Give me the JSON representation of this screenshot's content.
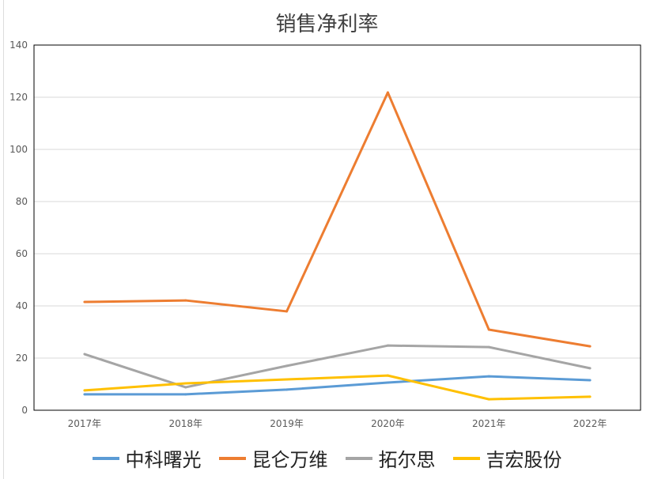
{
  "chart_data": {
    "type": "line",
    "title": "销售净利率",
    "categories": [
      "2017年",
      "2018年",
      "2019年",
      "2020年",
      "2021年",
      "2022年"
    ],
    "ylim": [
      0,
      140
    ],
    "yticks": [
      0,
      20,
      40,
      60,
      80,
      100,
      120,
      140
    ],
    "grid": true,
    "legend": "bottom",
    "series": [
      {
        "name": "中科曙光",
        "color": "#5b9bd5",
        "values": [
          6.1,
          6.1,
          7.9,
          10.6,
          13.0,
          11.5
        ]
      },
      {
        "name": "昆仑万维",
        "color": "#ed7d31",
        "values": [
          41.5,
          42.1,
          37.9,
          121.8,
          30.9,
          24.5
        ]
      },
      {
        "name": "拓尔思",
        "color": "#a5a5a5",
        "values": [
          21.5,
          8.8,
          17.0,
          24.8,
          24.2,
          16.1
        ]
      },
      {
        "name": "吉宏股份",
        "color": "#ffc000",
        "values": [
          7.6,
          10.3,
          11.8,
          13.3,
          4.2,
          5.2
        ]
      }
    ]
  }
}
